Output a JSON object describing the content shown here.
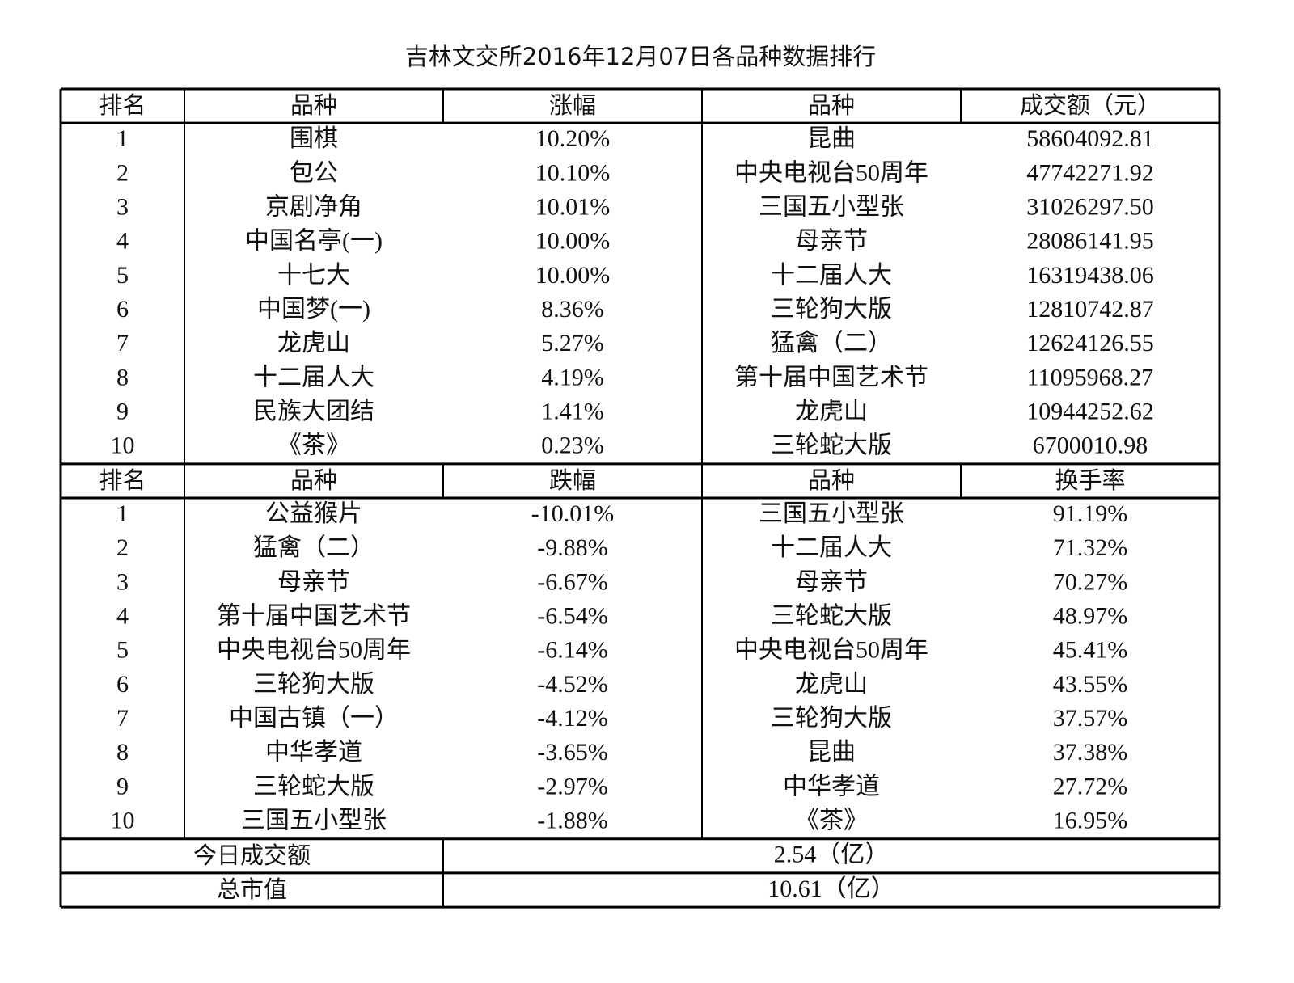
{
  "title": "吉林文交所2016年12月07日各品种数据排行",
  "sections": [
    {
      "header": [
        "排名",
        "品种",
        "涨幅",
        "品种",
        "成交额（元）"
      ],
      "rows": [
        [
          "1",
          "围棋",
          "10.20%",
          "昆曲",
          "58604092.81"
        ],
        [
          "2",
          "包公",
          "10.10%",
          "中央电视台50周年",
          "47742271.92"
        ],
        [
          "3",
          "京剧净角",
          "10.01%",
          "三国五小型张",
          "31026297.50"
        ],
        [
          "4",
          "中国名亭(一)",
          "10.00%",
          "母亲节",
          "28086141.95"
        ],
        [
          "5",
          "十七大",
          "10.00%",
          "十二届人大",
          "16319438.06"
        ],
        [
          "6",
          "中国梦(一)",
          "8.36%",
          "三轮狗大版",
          "12810742.87"
        ],
        [
          "7",
          "龙虎山",
          "5.27%",
          "猛禽（二）",
          "12624126.55"
        ],
        [
          "8",
          "十二届人大",
          "4.19%",
          "第十届中国艺术节",
          "11095968.27"
        ],
        [
          "9",
          "民族大团结",
          "1.41%",
          "龙虎山",
          "10944252.62"
        ],
        [
          "10",
          "《茶》",
          "0.23%",
          "三轮蛇大版",
          "6700010.98"
        ]
      ]
    },
    {
      "header": [
        "排名",
        "品种",
        "跌幅",
        "品种",
        "换手率"
      ],
      "rows": [
        [
          "1",
          "公益猴片",
          "-10.01%",
          "三国五小型张",
          "91.19%"
        ],
        [
          "2",
          "猛禽（二）",
          "-9.88%",
          "十二届人大",
          "71.32%"
        ],
        [
          "3",
          "母亲节",
          "-6.67%",
          "母亲节",
          "70.27%"
        ],
        [
          "4",
          "第十届中国艺术节",
          "-6.54%",
          "三轮蛇大版",
          "48.97%"
        ],
        [
          "5",
          "中央电视台50周年",
          "-6.14%",
          "中央电视台50周年",
          "45.41%"
        ],
        [
          "6",
          "三轮狗大版",
          "-4.52%",
          "龙虎山",
          "43.55%"
        ],
        [
          "7",
          "中国古镇（一）",
          "-4.12%",
          "三轮狗大版",
          "37.57%"
        ],
        [
          "8",
          "中华孝道",
          "-3.65%",
          "昆曲",
          "37.38%"
        ],
        [
          "9",
          "三轮蛇大版",
          "-2.97%",
          "中华孝道",
          "27.72%"
        ],
        [
          "10",
          "三国五小型张",
          "-1.88%",
          "《茶》",
          "16.95%"
        ]
      ]
    }
  ],
  "summary": [
    [
      "今日成交额",
      "2.54（亿）"
    ],
    [
      "总市值",
      "10.61（亿）"
    ]
  ]
}
